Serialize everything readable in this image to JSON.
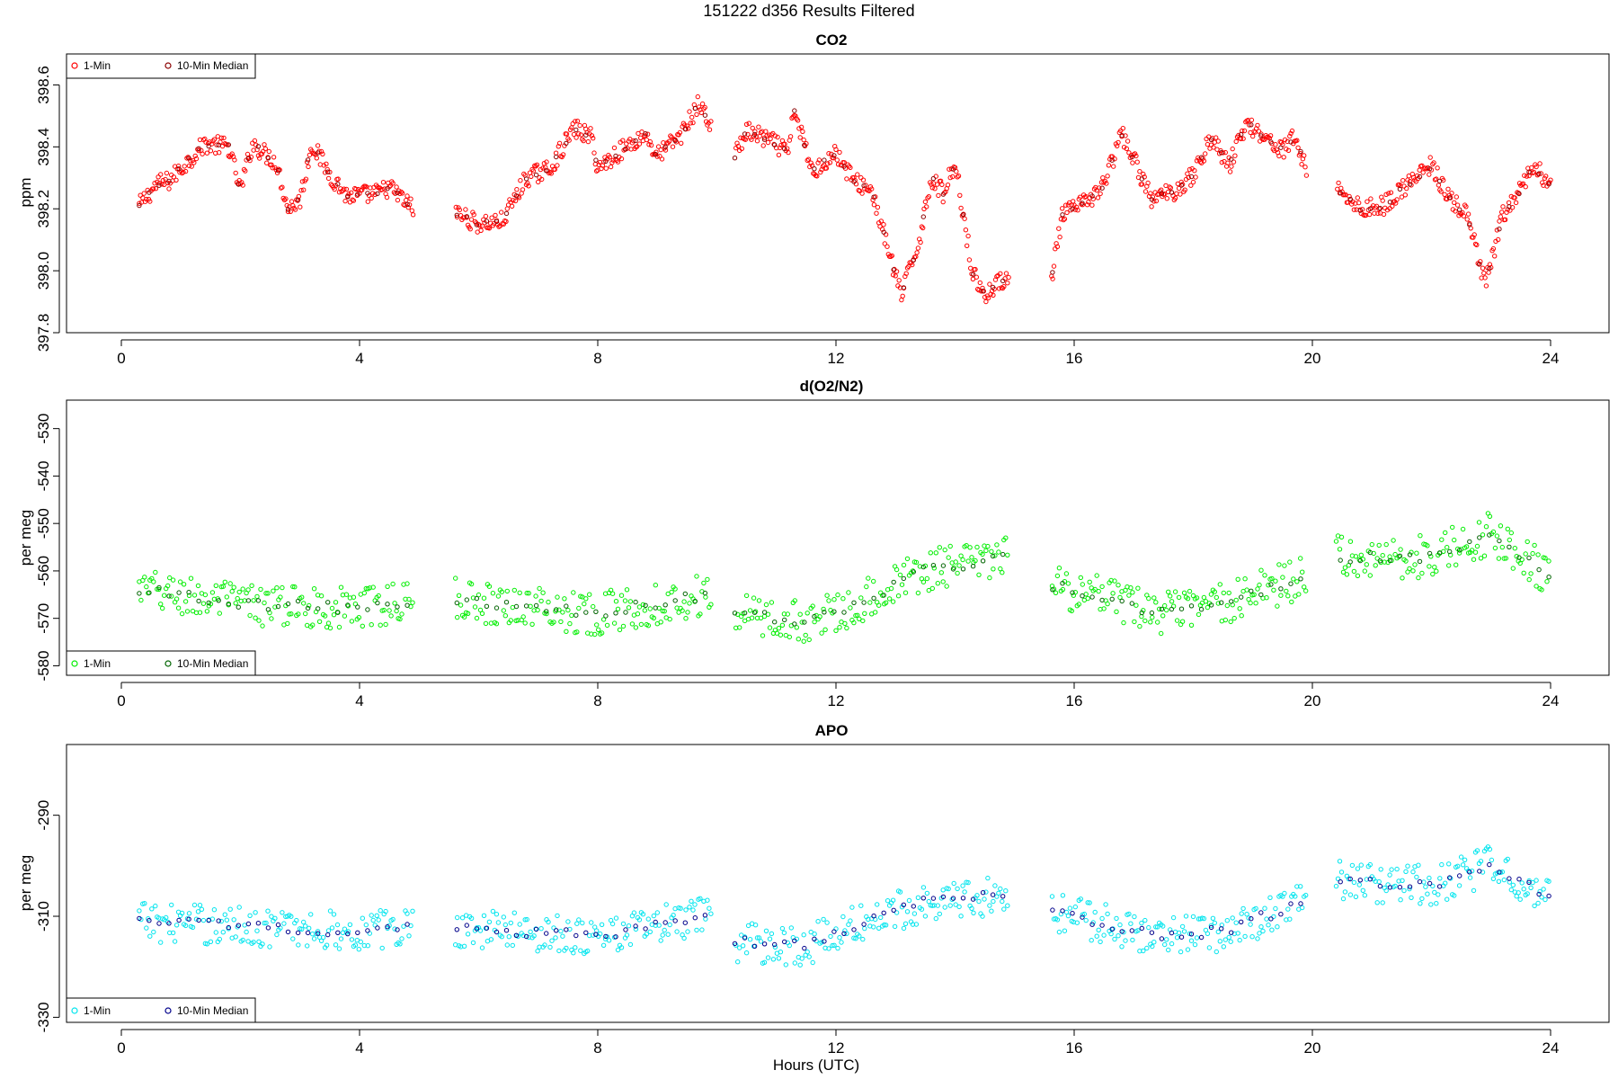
{
  "figure": {
    "title": "151222   d356   Results Filtered",
    "xlabel": "Hours (UTC)"
  },
  "chart_data": [
    {
      "type": "scatter",
      "title": "CO2",
      "ylabel": "ppm",
      "xlim": [
        0,
        24
      ],
      "ylim": [
        397.8,
        398.7
      ],
      "x_ticks": [
        "0",
        "4",
        "8",
        "12",
        "16",
        "20",
        "24"
      ],
      "y_ticks": [
        "397.8",
        "398.0",
        "398.2",
        "398.4",
        "398.6"
      ],
      "legend_position": "top-left",
      "series": [
        {
          "name": "1-Min",
          "color": "#ff0000"
        },
        {
          "name": "10-Min Median",
          "color": "#8b0000"
        }
      ],
      "gaps": [
        [
          4.9,
          5.6
        ],
        [
          9.9,
          10.3
        ],
        [
          14.9,
          15.6
        ],
        [
          19.9,
          20.4
        ]
      ],
      "anchors": [
        [
          0.3,
          398.21
        ],
        [
          0.6,
          398.28
        ],
        [
          0.8,
          398.29
        ],
        [
          1.0,
          398.33
        ],
        [
          1.4,
          398.41
        ],
        [
          1.8,
          398.4
        ],
        [
          2.0,
          398.26
        ],
        [
          2.2,
          398.41
        ],
        [
          2.6,
          398.35
        ],
        [
          2.8,
          398.2
        ],
        [
          3.0,
          398.23
        ],
        [
          3.2,
          398.41
        ],
        [
          3.5,
          398.31
        ],
        [
          3.8,
          398.24
        ],
        [
          4.3,
          398.25
        ],
        [
          4.5,
          398.27
        ],
        [
          4.9,
          398.2
        ],
        [
          5.6,
          398.19
        ],
        [
          6.0,
          398.15
        ],
        [
          6.4,
          398.16
        ],
        [
          6.8,
          398.3
        ],
        [
          7.2,
          398.33
        ],
        [
          7.6,
          398.46
        ],
        [
          7.9,
          398.43
        ],
        [
          8.0,
          398.33
        ],
        [
          8.4,
          398.39
        ],
        [
          8.8,
          398.44
        ],
        [
          9.0,
          398.37
        ],
        [
          9.4,
          398.44
        ],
        [
          9.7,
          398.54
        ],
        [
          9.9,
          398.47
        ],
        [
          10.3,
          398.37
        ],
        [
          10.5,
          398.45
        ],
        [
          10.9,
          398.42
        ],
        [
          11.2,
          398.38
        ],
        [
          11.3,
          398.52
        ],
        [
          11.6,
          398.32
        ],
        [
          12.0,
          398.38
        ],
        [
          12.3,
          398.29
        ],
        [
          12.6,
          398.26
        ],
        [
          12.9,
          398.05
        ],
        [
          13.1,
          397.92
        ],
        [
          13.4,
          398.1
        ],
        [
          13.6,
          398.3
        ],
        [
          13.8,
          398.25
        ],
        [
          14.0,
          398.35
        ],
        [
          14.3,
          397.99
        ],
        [
          14.5,
          397.92
        ],
        [
          14.9,
          397.99
        ],
        [
          15.6,
          397.95
        ],
        [
          15.8,
          398.18
        ],
        [
          16.2,
          398.22
        ],
        [
          16.5,
          398.28
        ],
        [
          16.8,
          398.44
        ],
        [
          17.0,
          398.36
        ],
        [
          17.3,
          398.23
        ],
        [
          17.7,
          398.26
        ],
        [
          18.0,
          398.31
        ],
        [
          18.3,
          398.43
        ],
        [
          18.6,
          398.34
        ],
        [
          18.9,
          398.48
        ],
        [
          19.2,
          398.43
        ],
        [
          19.5,
          398.39
        ],
        [
          19.7,
          398.43
        ],
        [
          19.9,
          398.33
        ],
        [
          20.4,
          398.27
        ],
        [
          20.8,
          398.2
        ],
        [
          21.2,
          398.21
        ],
        [
          21.6,
          398.28
        ],
        [
          22.0,
          398.34
        ],
        [
          22.3,
          398.23
        ],
        [
          22.6,
          398.18
        ],
        [
          22.9,
          397.95
        ],
        [
          23.2,
          398.18
        ],
        [
          23.5,
          398.26
        ],
        [
          23.7,
          398.34
        ],
        [
          24.0,
          398.28
        ]
      ],
      "noise": 0.03
    },
    {
      "type": "scatter",
      "title": "d(O2/N2)",
      "ylabel": "per meg",
      "xlim": [
        0,
        24
      ],
      "ylim": [
        -582,
        -524
      ],
      "x_ticks": [
        "0",
        "4",
        "8",
        "12",
        "16",
        "20",
        "24"
      ],
      "y_ticks": [
        "-580",
        "-570",
        "-560",
        "-550",
        "-540",
        "-530"
      ],
      "legend_position": "bottom-left",
      "series": [
        {
          "name": "1-Min",
          "color": "#00ee00"
        },
        {
          "name": "10-Min Median",
          "color": "#006400"
        }
      ],
      "gaps": [
        [
          4.9,
          5.6
        ],
        [
          9.9,
          10.3
        ],
        [
          14.9,
          15.6
        ],
        [
          19.9,
          20.4
        ]
      ],
      "anchors": [
        [
          0.3,
          -564
        ],
        [
          2.0,
          -567
        ],
        [
          4.0,
          -568
        ],
        [
          4.9,
          -566
        ],
        [
          5.6,
          -566
        ],
        [
          8.0,
          -569
        ],
        [
          9.9,
          -565
        ],
        [
          10.3,
          -569
        ],
        [
          11.5,
          -571
        ],
        [
          12.5,
          -566
        ],
        [
          13.5,
          -560
        ],
        [
          14.9,
          -557
        ],
        [
          15.6,
          -563
        ],
        [
          17.5,
          -569
        ],
        [
          18.5,
          -567
        ],
        [
          19.9,
          -561
        ],
        [
          20.4,
          -557
        ],
        [
          22.0,
          -557
        ],
        [
          23.0,
          -552
        ],
        [
          24.0,
          -561
        ]
      ],
      "noise": 4.5
    },
    {
      "type": "scatter",
      "title": "APO",
      "ylabel": "per meg",
      "xlim": [
        0,
        24
      ],
      "ylim": [
        -331,
        -276
      ],
      "x_ticks": [
        "0",
        "4",
        "8",
        "12",
        "16",
        "20",
        "24"
      ],
      "y_ticks": [
        "-330",
        "-310",
        "-290"
      ],
      "legend_position": "bottom-left",
      "series": [
        {
          "name": "1-Min",
          "color": "#00e5ee"
        },
        {
          "name": "10-Min Median",
          "color": "#00008b"
        }
      ],
      "gaps": [
        [
          4.9,
          5.6
        ],
        [
          9.9,
          10.3
        ],
        [
          14.9,
          15.6
        ],
        [
          19.9,
          20.4
        ]
      ],
      "anchors": [
        [
          0.3,
          -311
        ],
        [
          2.0,
          -312
        ],
        [
          4.0,
          -313
        ],
        [
          4.9,
          -312
        ],
        [
          5.6,
          -312
        ],
        [
          8.0,
          -314
        ],
        [
          9.9,
          -310
        ],
        [
          10.3,
          -315
        ],
        [
          11.5,
          -316
        ],
        [
          12.5,
          -311
        ],
        [
          13.5,
          -307
        ],
        [
          14.9,
          -306
        ],
        [
          15.6,
          -309
        ],
        [
          17.5,
          -314
        ],
        [
          18.5,
          -313
        ],
        [
          19.9,
          -307
        ],
        [
          20.4,
          -303
        ],
        [
          22.0,
          -304
        ],
        [
          23.0,
          -300
        ],
        [
          24.0,
          -306
        ]
      ],
      "noise": 4.0
    }
  ]
}
